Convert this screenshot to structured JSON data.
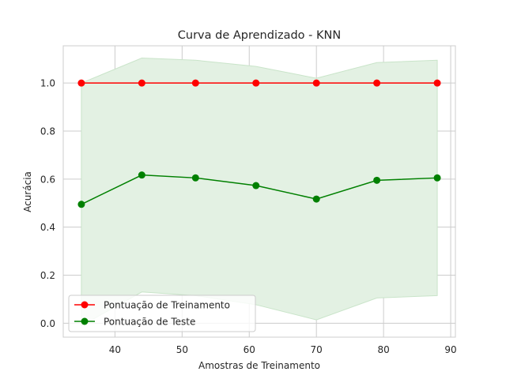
{
  "chart_data": {
    "type": "line",
    "title": "Curva de Aprendizado - KNN",
    "xlabel": "Amostras de Treinamento",
    "ylabel": "Acurácia",
    "xlim": [
      32.3,
      90.7
    ],
    "ylim": [
      -0.058,
      1.155
    ],
    "xticks": [
      "40",
      "50",
      "60",
      "70",
      "80",
      "90"
    ],
    "yticks": [
      "0.0",
      "0.2",
      "0.4",
      "0.6",
      "0.8",
      "1.0"
    ],
    "grid": true,
    "legend_position": "lower-left",
    "x": [
      35,
      44,
      52,
      61,
      70,
      79,
      88
    ],
    "series": [
      {
        "name": "Pontuação de Treinamento",
        "color": "#ff0000",
        "marker": "circle",
        "values": [
          1.0,
          1.0,
          1.0,
          1.0,
          1.0,
          1.0,
          1.0
        ]
      },
      {
        "name": "Pontuação de Teste",
        "color": "#008000",
        "marker": "circle",
        "values": [
          0.495,
          0.617,
          0.605,
          0.573,
          0.517,
          0.595,
          0.605
        ],
        "band_upper": [
          1.0,
          1.104,
          1.095,
          1.069,
          1.02,
          1.085,
          1.095
        ],
        "band_lower": [
          -0.01,
          0.13,
          0.115,
          0.077,
          0.014,
          0.105,
          0.115
        ],
        "band_color": "#e3f1e3"
      }
    ]
  }
}
